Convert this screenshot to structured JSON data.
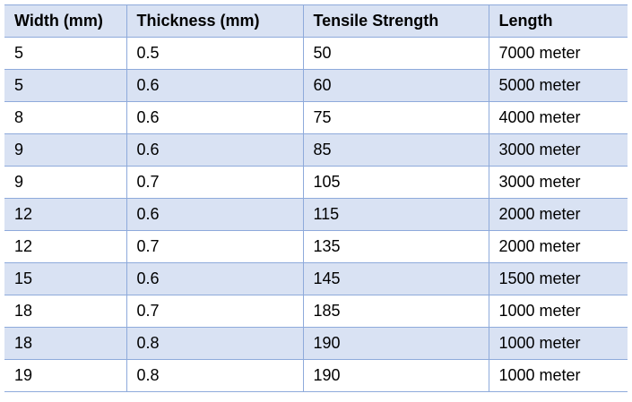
{
  "table": {
    "headers": [
      "Width (mm)",
      "Thickness (mm)",
      "Tensile Strength",
      "Length"
    ],
    "rows": [
      [
        "5",
        "0.5",
        "50",
        "7000 meter"
      ],
      [
        "5",
        "0.6",
        "60",
        "5000 meter"
      ],
      [
        "8",
        "0.6",
        "75",
        "4000 meter"
      ],
      [
        "9",
        "0.6",
        "85",
        "3000 meter"
      ],
      [
        "9",
        "0.7",
        "105",
        "3000 meter"
      ],
      [
        "12",
        "0.6",
        "115",
        "2000 meter"
      ],
      [
        "12",
        "0.7",
        "135",
        "2000 meter"
      ],
      [
        "15",
        "0.6",
        "145",
        "1500 meter"
      ],
      [
        "18",
        "0.7",
        "185",
        "1000 meter"
      ],
      [
        "18",
        "0.8",
        "190",
        "1000 meter"
      ],
      [
        "19",
        "0.8",
        "190",
        "1000 meter"
      ]
    ]
  },
  "colors": {
    "header_band": "#d9e2f3",
    "stripe_band": "#d9e2f3",
    "border": "#8eaadb"
  }
}
